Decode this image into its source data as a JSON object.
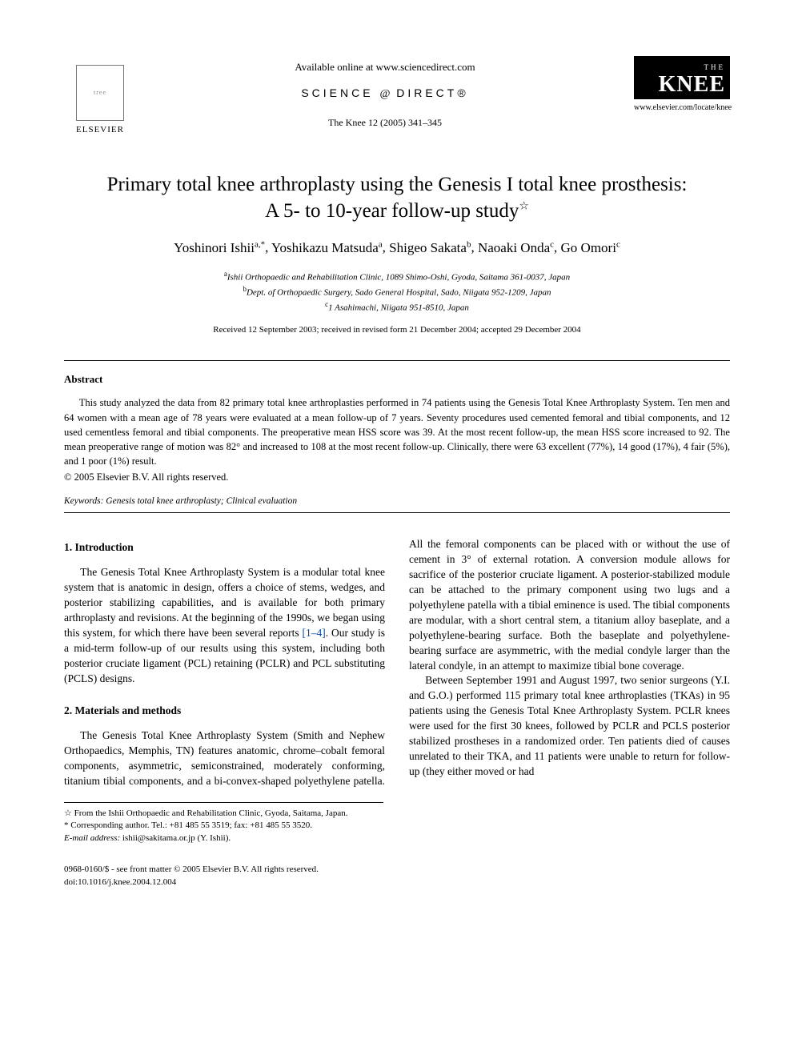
{
  "header": {
    "available_online": "Available online at www.sciencedirect.com",
    "science_direct": "SCIENCE",
    "science_direct_at": "d",
    "science_direct2": "DIRECT®",
    "journal_ref": "The Knee 12 (2005) 341–345",
    "elsevier_label": "ELSEVIER",
    "knee_the": "THE",
    "knee_main": "KNEE",
    "knee_url": "www.elsevier.com/locate/knee"
  },
  "title_line1": "Primary total knee arthroplasty using the Genesis I total knee prosthesis:",
  "title_line2": "A 5- to 10-year follow-up study",
  "title_star": "☆",
  "authors_html": "Yoshinori Ishii",
  "authors": [
    {
      "name": "Yoshinori Ishii",
      "sup": "a,*"
    },
    {
      "name": "Yoshikazu Matsuda",
      "sup": "a"
    },
    {
      "name": "Shigeo Sakata",
      "sup": "b"
    },
    {
      "name": "Naoaki Onda",
      "sup": "c"
    },
    {
      "name": "Go Omori",
      "sup": "c"
    }
  ],
  "affiliations": [
    {
      "sup": "a",
      "text": "Ishii Orthopaedic and Rehabilitation Clinic, 1089 Shimo-Oshi, Gyoda, Saitama 361-0037, Japan"
    },
    {
      "sup": "b",
      "text": "Dept. of Orthopaedic Surgery, Sado General Hospital, Sado, Niigata 952-1209, Japan"
    },
    {
      "sup": "c",
      "text": "1 Asahimachi, Niigata 951-8510, Japan"
    }
  ],
  "dates": "Received 12 September 2003; received in revised form 21 December 2004; accepted 29 December 2004",
  "abstract": {
    "heading": "Abstract",
    "body": "This study analyzed the data from 82 primary total knee arthroplasties performed in 74 patients using the Genesis Total Knee Arthroplasty System. Ten men and 64 women with a mean age of 78 years were evaluated at a mean follow-up of 7 years. Seventy procedures used cemented femoral and tibial components, and 12 used cementless femoral and tibial components. The preoperative mean HSS score was 39. At the most recent follow-up, the mean HSS score increased to 92. The mean preoperative range of motion was 82° and increased to 108 at the most recent follow-up. Clinically, there were 63 excellent (77%), 14 good (17%), 4 fair (5%), and 1 poor (1%) result.",
    "copyright": "© 2005 Elsevier B.V. All rights reserved."
  },
  "keywords": {
    "label": "Keywords:",
    "text": "Genesis total knee arthroplasty; Clinical evaluation"
  },
  "sections": {
    "intro_head": "1. Introduction",
    "intro_body": "The Genesis Total Knee Arthroplasty System is a modular total knee system that is anatomic in design, offers a choice of stems, wedges, and posterior stabilizing capabilities, and is available for both primary arthroplasty and revisions. At the beginning of the 1990s, we began using this system, for which there have been several reports ",
    "intro_ref": "[1–4]",
    "intro_body2": ". Our study is a mid-term follow-up of our results using this system, including both posterior cruciate ligament (PCL) retaining (PCLR) and PCL substituting (PCLS) designs.",
    "mm_head": "2. Materials and methods",
    "mm_p1": "The Genesis Total Knee Arthroplasty System (Smith and Nephew Orthopaedics, Memphis, TN) features anatomic, chrome–cobalt femoral components, asymmetric, semiconstrained, moderately conforming, titanium tibial components, and a bi-convex-shaped polyethylene patella. All the femoral components can be placed with or without the use of cement in 3° of external rotation. A conversion module allows for sacrifice of the posterior cruciate ligament. A posterior-stabilized module can be attached to the primary component using two lugs and a polyethylene patella with a tibial eminence is used. The tibial components are modular, with a short central stem, a titanium alloy baseplate, and a polyethylene-bearing surface. Both the baseplate and polyethylene-bearing surface are asymmetric, with the medial condyle larger than the lateral condyle, in an attempt to maximize tibial bone coverage.",
    "mm_p2": "Between September 1991 and August 1997, two senior surgeons (Y.I. and G.O.) performed 115 primary total knee arthroplasties (TKAs) in 95 patients using the Genesis Total Knee Arthroplasty System. PCLR knees were used for the first 30 knees, followed by PCLR and PCLS posterior stabilized prostheses in a randomized order. Ten patients died of causes unrelated to their TKA, and 11 patients were unable to return for follow-up (they either moved or had"
  },
  "footnotes": {
    "star": "☆ From the Ishii Orthopaedic and Rehabilitation Clinic, Gyoda, Saitama, Japan.",
    "corr": "* Corresponding author. Tel.: +81 485 55 3519; fax: +81 485 55 3520.",
    "email_label": "E-mail address:",
    "email": "ishii@sakitama.or.jp (Y. Ishii)."
  },
  "bottom": {
    "line1": "0968-0160/$ - see front matter © 2005 Elsevier B.V. All rights reserved.",
    "line2": "doi:10.1016/j.knee.2004.12.004"
  }
}
